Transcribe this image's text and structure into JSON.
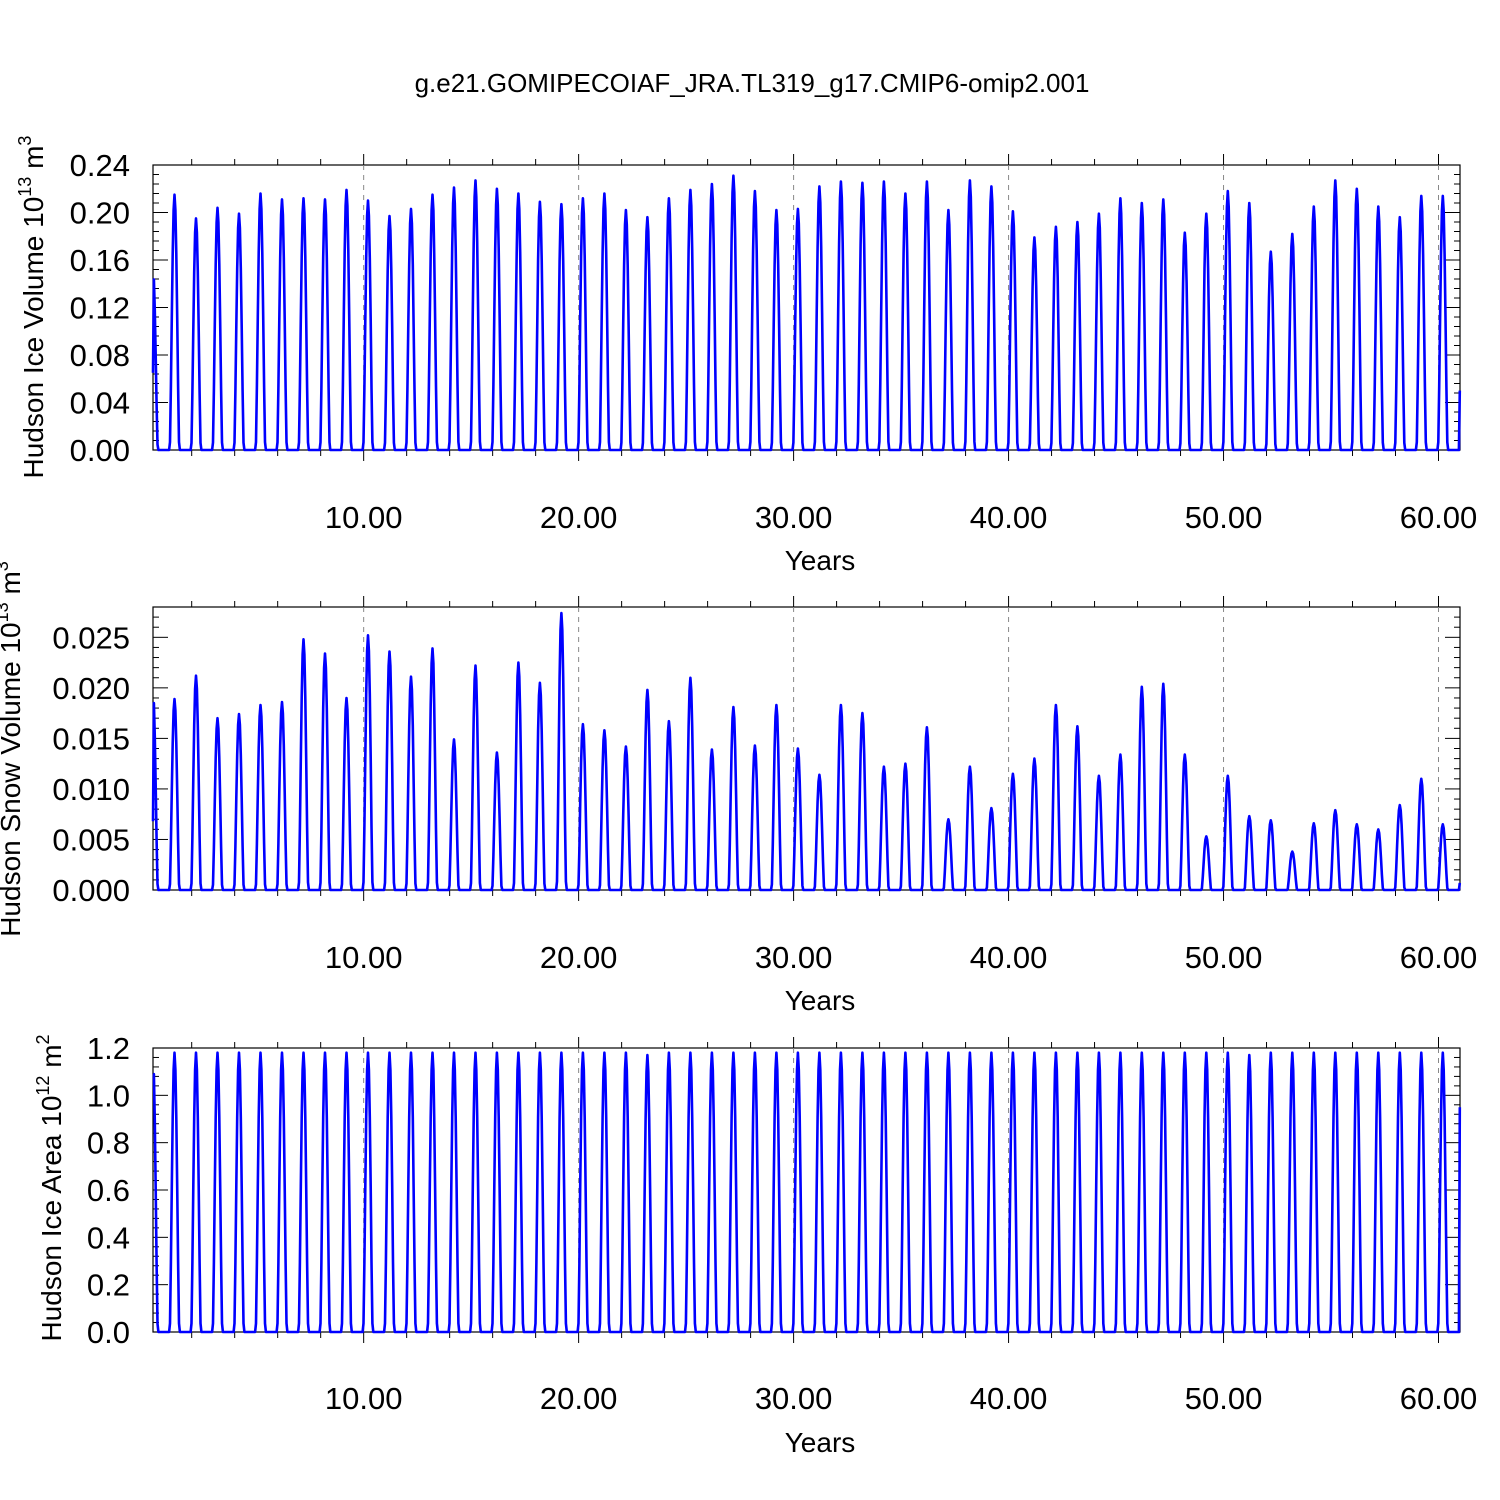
{
  "title": "g.e21.GOMIPECOIAF_JRA.TL319_g17.CMIP6-omip2.001",
  "line_color": "#0000ff",
  "grid_color": "#888888",
  "chart_data": [
    {
      "type": "line",
      "ylabel_base": "Hudson Ice Volume 10",
      "ylabel_exp": "13",
      "ylabel_unit": " m",
      "ylabel_unit_exp": "3",
      "xlabel": "Years",
      "xlim": [
        0.2,
        61.0
      ],
      "ylim": [
        0.0,
        0.24
      ],
      "xticks": [
        10,
        20,
        30,
        40,
        50,
        60
      ],
      "xtick_labels": [
        "10.00",
        "20.00",
        "30.00",
        "40.00",
        "50.00",
        "60.00"
      ],
      "yticks": [
        0.0,
        0.04,
        0.08,
        0.12,
        0.16,
        0.2,
        0.24
      ],
      "ytick_labels": [
        "0.00",
        "0.04",
        "0.08",
        "0.12",
        "0.16",
        "0.20",
        "0.24"
      ],
      "grid": "dashed vertical at major x ticks",
      "start_value": 0.065,
      "end_value": 0.05,
      "seasonal_peaks": [
        0.153,
        0.215,
        0.195,
        0.204,
        0.199,
        0.216,
        0.211,
        0.212,
        0.211,
        0.219,
        0.21,
        0.197,
        0.203,
        0.215,
        0.221,
        0.227,
        0.22,
        0.216,
        0.209,
        0.207,
        0.212,
        0.216,
        0.202,
        0.196,
        0.212,
        0.219,
        0.224,
        0.231,
        0.218,
        0.202,
        0.203,
        0.222,
        0.226,
        0.225,
        0.226,
        0.216,
        0.226,
        0.202,
        0.227,
        0.222,
        0.201,
        0.179,
        0.188,
        0.192,
        0.199,
        0.212,
        0.208,
        0.211,
        0.183,
        0.199,
        0.218,
        0.208,
        0.167,
        0.182,
        0.205,
        0.227,
        0.22,
        0.205,
        0.196,
        0.214
      ]
    },
    {
      "type": "line",
      "ylabel_base": "Hudson Snow Volume 10",
      "ylabel_exp": "13",
      "ylabel_unit": " m",
      "ylabel_unit_exp": "3",
      "xlabel": "Years",
      "xlim": [
        0.2,
        61.0
      ],
      "ylim": [
        0.0,
        0.028
      ],
      "xticks": [
        10,
        20,
        30,
        40,
        50,
        60
      ],
      "xtick_labels": [
        "10.00",
        "20.00",
        "30.00",
        "40.00",
        "50.00",
        "60.00"
      ],
      "yticks": [
        0.0,
        0.005,
        0.01,
        0.015,
        0.02,
        0.025
      ],
      "ytick_labels": [
        "0.000",
        "0.005",
        "0.010",
        "0.015",
        "0.020",
        "0.025"
      ],
      "grid": "dashed vertical at major x ticks",
      "start_value": 0.0068,
      "end_value": 0.0007,
      "seasonal_peaks": [
        0.0197,
        0.0189,
        0.0212,
        0.017,
        0.0174,
        0.0183,
        0.0186,
        0.0248,
        0.0234,
        0.019,
        0.0252,
        0.0236,
        0.0211,
        0.0239,
        0.0149,
        0.0222,
        0.0136,
        0.0225,
        0.0205,
        0.0274,
        0.0164,
        0.0158,
        0.0142,
        0.0198,
        0.0167,
        0.021,
        0.0139,
        0.0181,
        0.0143,
        0.0183,
        0.014,
        0.0114,
        0.0183,
        0.0175,
        0.0122,
        0.0125,
        0.0161,
        0.007,
        0.0122,
        0.0081,
        0.0115,
        0.013,
        0.0183,
        0.0162,
        0.0113,
        0.0134,
        0.0201,
        0.0204,
        0.0134,
        0.0053,
        0.0113,
        0.0073,
        0.0069,
        0.0038,
        0.0066,
        0.0079,
        0.0065,
        0.006,
        0.0084,
        0.011,
        0.0065
      ]
    },
    {
      "type": "line",
      "ylabel_base": "Hudson Ice Area 10",
      "ylabel_exp": "12",
      "ylabel_unit": " m",
      "ylabel_unit_exp": "2",
      "xlabel": "Years",
      "xlim": [
        0.2,
        61.0
      ],
      "ylim": [
        0.0,
        1.2
      ],
      "xticks": [
        10,
        20,
        30,
        40,
        50,
        60
      ],
      "xtick_labels": [
        "10.00",
        "20.00",
        "30.00",
        "40.00",
        "50.00",
        "60.00"
      ],
      "yticks": [
        0.0,
        0.2,
        0.4,
        0.6,
        0.8,
        1.0,
        1.2
      ],
      "ytick_labels": [
        "0.0",
        "0.2",
        "0.4",
        "0.6",
        "0.8",
        "1.0",
        "1.2"
      ],
      "grid": "dashed vertical at major x ticks",
      "start_value": 1.09,
      "end_value": 0.95,
      "seasonal_peaks": [
        1.16,
        1.18,
        1.18,
        1.18,
        1.18,
        1.18,
        1.18,
        1.18,
        1.18,
        1.18,
        1.18,
        1.18,
        1.18,
        1.18,
        1.18,
        1.18,
        1.18,
        1.18,
        1.18,
        1.18,
        1.18,
        1.18,
        1.18,
        1.17,
        1.18,
        1.18,
        1.18,
        1.18,
        1.18,
        1.18,
        1.18,
        1.18,
        1.18,
        1.18,
        1.18,
        1.18,
        1.18,
        1.18,
        1.18,
        1.18,
        1.18,
        1.18,
        1.18,
        1.18,
        1.18,
        1.18,
        1.18,
        1.18,
        1.18,
        1.18,
        1.18,
        1.17,
        1.18,
        1.18,
        1.18,
        1.18,
        1.18,
        1.18,
        1.18,
        1.18,
        1.18
      ]
    }
  ]
}
